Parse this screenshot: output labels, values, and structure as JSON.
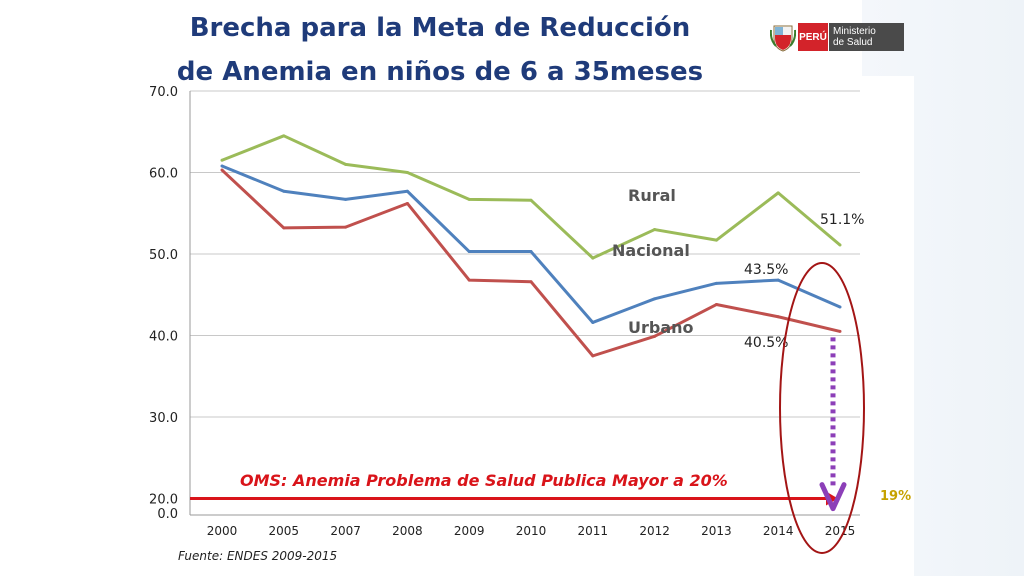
{
  "header": {
    "title_line1": "Brecha para la Meta de Reducción",
    "title_line2": "de Anemia en niños de 6 a 35meses"
  },
  "logo": {
    "country": "PERÚ",
    "ministry_line1": "Ministerio",
    "ministry_line2": "de Salud"
  },
  "source": "Fuente: ENDES 2009-2015",
  "colors": {
    "rural": "#9bbb59",
    "nacional": "#4f81bd",
    "urbano": "#c0504d",
    "oms": "#d9141a",
    "ellipse": "#a31515",
    "arrow": "#8c3fb8",
    "goal_label": "#c6a200",
    "title": "#1f3b7a"
  },
  "chart_data": {
    "type": "line",
    "categories": [
      "2000",
      "2005",
      "2007",
      "2008",
      "2009",
      "2010",
      "2011",
      "2012",
      "2013",
      "2014",
      "2015"
    ],
    "series": [
      {
        "name": "Rural",
        "values": [
          61.5,
          64.5,
          61.0,
          60.0,
          56.7,
          56.6,
          49.5,
          53.0,
          51.7,
          57.5,
          51.1
        ]
      },
      {
        "name": "Nacional",
        "values": [
          60.8,
          57.7,
          56.7,
          57.7,
          50.3,
          50.3,
          41.6,
          44.5,
          46.4,
          46.8,
          43.5
        ]
      },
      {
        "name": "Urbano",
        "values": [
          60.3,
          53.2,
          53.3,
          56.2,
          46.8,
          46.6,
          37.5,
          39.9,
          43.8,
          42.3,
          40.5
        ]
      }
    ],
    "y_ticks": [
      "0.0",
      "20.0",
      "30.0",
      "40.0",
      "50.0",
      "60.0",
      "70.0"
    ],
    "ylim": [
      20,
      70
    ],
    "y_axis_break": "0.0 shown just below 20.0",
    "grid": true,
    "annotations": {
      "rural_end": "51.1%",
      "nacional_end": "43.5%",
      "urbano_end": "40.5%",
      "oms_line_text": "OMS: Anemia Problema de Salud Publica Mayor a 20%",
      "oms_value": 20.0,
      "goal_label": "19%",
      "goal_value": 19.0
    }
  }
}
